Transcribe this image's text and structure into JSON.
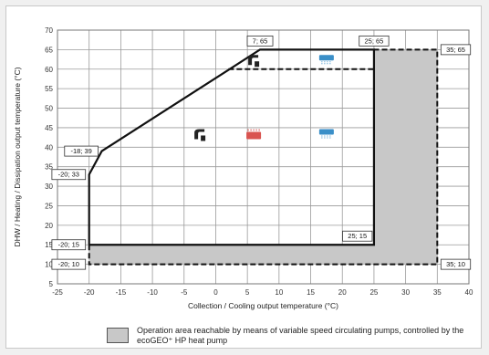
{
  "chart_data": {
    "type": "area",
    "xlabel": "Collection / Cooling output temperature (°C)",
    "ylabel": "DHW / Heating / Dissipation output temperature (°C)",
    "xlim": [
      -25,
      40
    ],
    "ylim": [
      5,
      70
    ],
    "x_ticks": [
      -25,
      -20,
      -15,
      -10,
      -5,
      0,
      5,
      10,
      15,
      20,
      25,
      30,
      35,
      40
    ],
    "y_ticks": [
      5,
      10,
      15,
      20,
      25,
      30,
      35,
      40,
      45,
      50,
      55,
      60,
      65,
      70
    ],
    "grid": true,
    "series": [
      {
        "style": "solid-boundary",
        "points": [
          [
            -20,
            15
          ],
          [
            -20,
            33
          ],
          [
            -18,
            39
          ],
          [
            7,
            65
          ],
          [
            25,
            65
          ],
          [
            25,
            15
          ],
          [
            -20,
            15
          ]
        ]
      },
      {
        "style": "dashed-boundary",
        "points": [
          [
            -20,
            15
          ],
          [
            -20,
            10
          ],
          [
            35,
            10
          ],
          [
            35,
            65
          ],
          [
            25,
            65
          ]
        ]
      },
      {
        "style": "dashed-boundary",
        "points": [
          [
            2,
            60
          ],
          [
            25,
            60
          ]
        ]
      }
    ],
    "shaded_regions": [
      {
        "polygon": [
          [
            -20,
            10
          ],
          [
            35,
            10
          ],
          [
            35,
            65
          ],
          [
            25,
            65
          ],
          [
            25,
            15
          ],
          [
            -20,
            15
          ]
        ],
        "color": "#c8c8c8"
      }
    ],
    "point_labels": [
      {
        "text": "7; 65",
        "x": 7,
        "y": 65,
        "anchor": "above"
      },
      {
        "text": "25; 65",
        "x": 25,
        "y": 65,
        "anchor": "above"
      },
      {
        "text": "35; 65",
        "x": 35,
        "y": 65,
        "anchor": "right"
      },
      {
        "text": "-18; 39",
        "x": -18,
        "y": 39,
        "anchor": "left"
      },
      {
        "text": "-20; 33",
        "x": -20,
        "y": 33,
        "anchor": "left"
      },
      {
        "text": "-20; 15",
        "x": -20,
        "y": 15,
        "anchor": "left"
      },
      {
        "text": "25; 15",
        "x": 25,
        "y": 15,
        "anchor": "left-above"
      },
      {
        "text": "-20; 10",
        "x": -20,
        "y": 10,
        "anchor": "left"
      },
      {
        "text": "35; 10",
        "x": 35,
        "y": 10,
        "anchor": "right"
      }
    ],
    "icons": [
      {
        "name": "tap-icon",
        "x": 6,
        "y": 62
      },
      {
        "name": "cooling-unit-icon",
        "x": 17.5,
        "y": 62
      },
      {
        "name": "tap-icon",
        "x": -2.5,
        "y": 43
      },
      {
        "name": "radiator-icon",
        "x": 6,
        "y": 43
      },
      {
        "name": "cooling-unit-icon",
        "x": 17.5,
        "y": 43
      }
    ],
    "colors": {
      "boundary": "#111111",
      "shade": "#c8c8c8",
      "radiator": "#d9534f",
      "cooling": "#3a8fc8"
    },
    "legend": {
      "text": "Operation area reachable by means of variable speed circulating pumps, controlled by the ecoGEO⁺ HP heat pump",
      "placement": "bottom"
    }
  }
}
